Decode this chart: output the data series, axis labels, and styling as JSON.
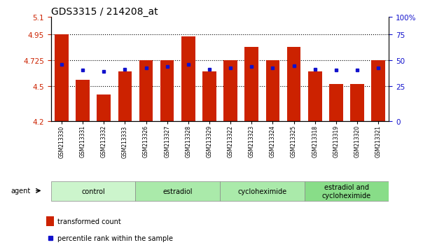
{
  "title": "GDS3315 / 214208_at",
  "samples": [
    "GSM213330",
    "GSM213331",
    "GSM213332",
    "GSM213333",
    "GSM213326",
    "GSM213327",
    "GSM213328",
    "GSM213329",
    "GSM213322",
    "GSM213323",
    "GSM213324",
    "GSM213325",
    "GSM213318",
    "GSM213319",
    "GSM213320",
    "GSM213321"
  ],
  "bar_values": [
    4.95,
    4.56,
    4.43,
    4.63,
    4.725,
    4.725,
    4.93,
    4.63,
    4.725,
    4.84,
    4.725,
    4.84,
    4.63,
    4.52,
    4.52,
    4.725
  ],
  "blue_values": [
    4.69,
    4.64,
    4.63,
    4.65,
    4.66,
    4.67,
    4.69,
    4.65,
    4.66,
    4.67,
    4.66,
    4.68,
    4.65,
    4.64,
    4.64,
    4.66
  ],
  "ymin": 4.2,
  "ymax": 5.1,
  "yticks_left": [
    4.2,
    4.5,
    4.725,
    4.95,
    5.1
  ],
  "yticks_right_vals": [
    0,
    25,
    50,
    75,
    100
  ],
  "yticks_right_pos": [
    4.2,
    4.5,
    4.725,
    4.95,
    5.1
  ],
  "groups": [
    {
      "label": "control",
      "start": 0,
      "end": 4
    },
    {
      "label": "estradiol",
      "start": 4,
      "end": 8
    },
    {
      "label": "cycloheximide",
      "start": 8,
      "end": 12
    },
    {
      "label": "estradiol and\ncycloheximide",
      "start": 12,
      "end": 16
    }
  ],
  "group_colors": [
    "#ccf5cc",
    "#aaeaaa",
    "#aaeaaa",
    "#88dd88"
  ],
  "bar_color": "#cc2200",
  "blue_color": "#1111cc",
  "bg_color": "#ffffff",
  "plot_bg": "#ffffff",
  "axis_color_left": "#cc2200",
  "axis_color_right": "#1111cc",
  "bar_width": 0.65,
  "legend_red": "transformed count",
  "legend_blue": "percentile rank within the sample",
  "agent_label": "agent",
  "grid_lines": [
    4.5,
    4.725,
    4.95
  ],
  "title_fontsize": 10,
  "tick_fontsize": 7.5,
  "label_fontsize": 7,
  "group_fontsize": 7
}
